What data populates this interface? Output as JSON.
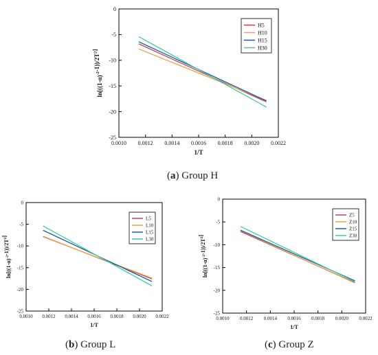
{
  "colors": {
    "axis": "#000000",
    "s1": "#c04060",
    "s2": "#f0a048",
    "s3": "#1c5fa0",
    "s4": "#3ecaa4"
  },
  "captions": [
    {
      "letter": "a",
      "text": "Group H"
    },
    {
      "letter": "b",
      "text": "Group L"
    },
    {
      "letter": "c",
      "text": "Group Z"
    }
  ],
  "chart_data": [
    {
      "type": "line",
      "xlabel": "1/T",
      "ylabel": "ln[((1-α)^-2-1))/2T^2]",
      "xlim": [
        0.001,
        0.0022
      ],
      "ylim": [
        -25,
        0
      ],
      "xticks": [
        "0.0010",
        "0.0012",
        "0.0014",
        "0.0016",
        "0.0018",
        "0.0020",
        "0.0022"
      ],
      "yticks": [
        "0",
        "-5",
        "-10",
        "-15",
        "-20",
        "-25"
      ],
      "legend_position": "top-right",
      "series": [
        {
          "name": "H5",
          "x": [
            0.00115,
            0.00211
          ],
          "y": [
            -6.8,
            -18.1
          ]
        },
        {
          "name": "H10",
          "x": [
            0.00115,
            0.00211
          ],
          "y": [
            -7.8,
            -17.8
          ]
        },
        {
          "name": "H15",
          "x": [
            0.00115,
            0.00211
          ],
          "y": [
            -6.4,
            -17.9
          ]
        },
        {
          "name": "H30",
          "x": [
            0.00115,
            0.00211
          ],
          "y": [
            -5.4,
            -19.1
          ]
        }
      ]
    },
    {
      "type": "line",
      "xlabel": "1/T",
      "ylabel": "ln[((1-α)^-2-1))/2T^2]",
      "xlim": [
        0.001,
        0.0022
      ],
      "ylim": [
        -25,
        0
      ],
      "xticks": [
        "0.0010",
        "0.0012",
        "0.0014",
        "0.0016",
        "0.0018",
        "0.0020",
        "0.0022"
      ],
      "yticks": [
        "0",
        "-5",
        "-10",
        "-15",
        "-20",
        "-25"
      ],
      "legend_position": "top-right",
      "series": [
        {
          "name": "L5",
          "x": [
            0.00115,
            0.00211
          ],
          "y": [
            -7.8,
            -17.6
          ]
        },
        {
          "name": "L10",
          "x": [
            0.00115,
            0.00211
          ],
          "y": [
            -7.9,
            -17.4
          ]
        },
        {
          "name": "L15",
          "x": [
            0.00115,
            0.00211
          ],
          "y": [
            -6.4,
            -18.2
          ]
        },
        {
          "name": "L30",
          "x": [
            0.00115,
            0.00211
          ],
          "y": [
            -5.4,
            -19.2
          ]
        }
      ]
    },
    {
      "type": "line",
      "xlabel": "1/T",
      "ylabel": "ln[((1-α)^-2-1))/2T^2]",
      "xlim": [
        0.001,
        0.0022
      ],
      "ylim": [
        -25,
        0
      ],
      "xticks": [
        "0.0010",
        "0.0012",
        "0.0014",
        "0.0016",
        "0.0018",
        "0.0020",
        "0.0022"
      ],
      "yticks": [
        "0",
        "-5",
        "-10",
        "-15",
        "-20",
        "-25"
      ],
      "legend_position": "top-right",
      "series": [
        {
          "name": "Z5",
          "x": [
            0.00115,
            0.00211
          ],
          "y": [
            -7.1,
            -18.3
          ]
        },
        {
          "name": "Z10",
          "x": [
            0.00115,
            0.00211
          ],
          "y": [
            -6.9,
            -18.4
          ]
        },
        {
          "name": "Z15",
          "x": [
            0.00115,
            0.00211
          ],
          "y": [
            -6.8,
            -17.9
          ]
        },
        {
          "name": "Z30",
          "x": [
            0.00115,
            0.00211
          ],
          "y": [
            -6.0,
            -18.1
          ]
        }
      ]
    }
  ]
}
